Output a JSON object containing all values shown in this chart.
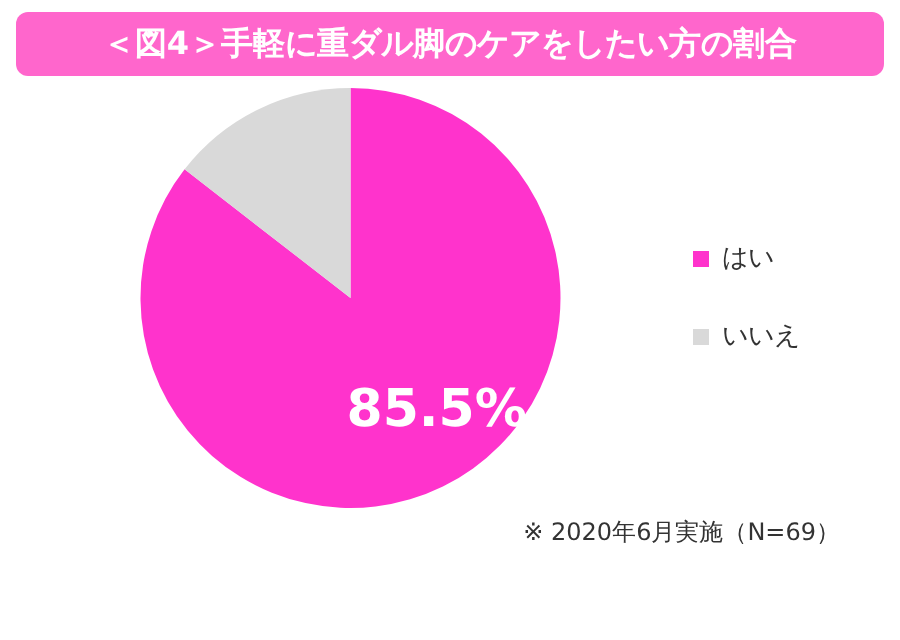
{
  "chart_data": {
    "type": "pie",
    "title": "＜図4＞手軽に重ダル脚のケアをしたい方の割合",
    "categories": [
      "はい",
      "いいえ"
    ],
    "values": [
      85.5,
      14.5
    ],
    "colors": [
      "#ff33cc",
      "#d9d9d9"
    ],
    "value_labels": [
      "85.5%",
      null
    ],
    "legend": "right",
    "annotations": [
      "※ 2020年6月実施（N=69）"
    ]
  }
}
